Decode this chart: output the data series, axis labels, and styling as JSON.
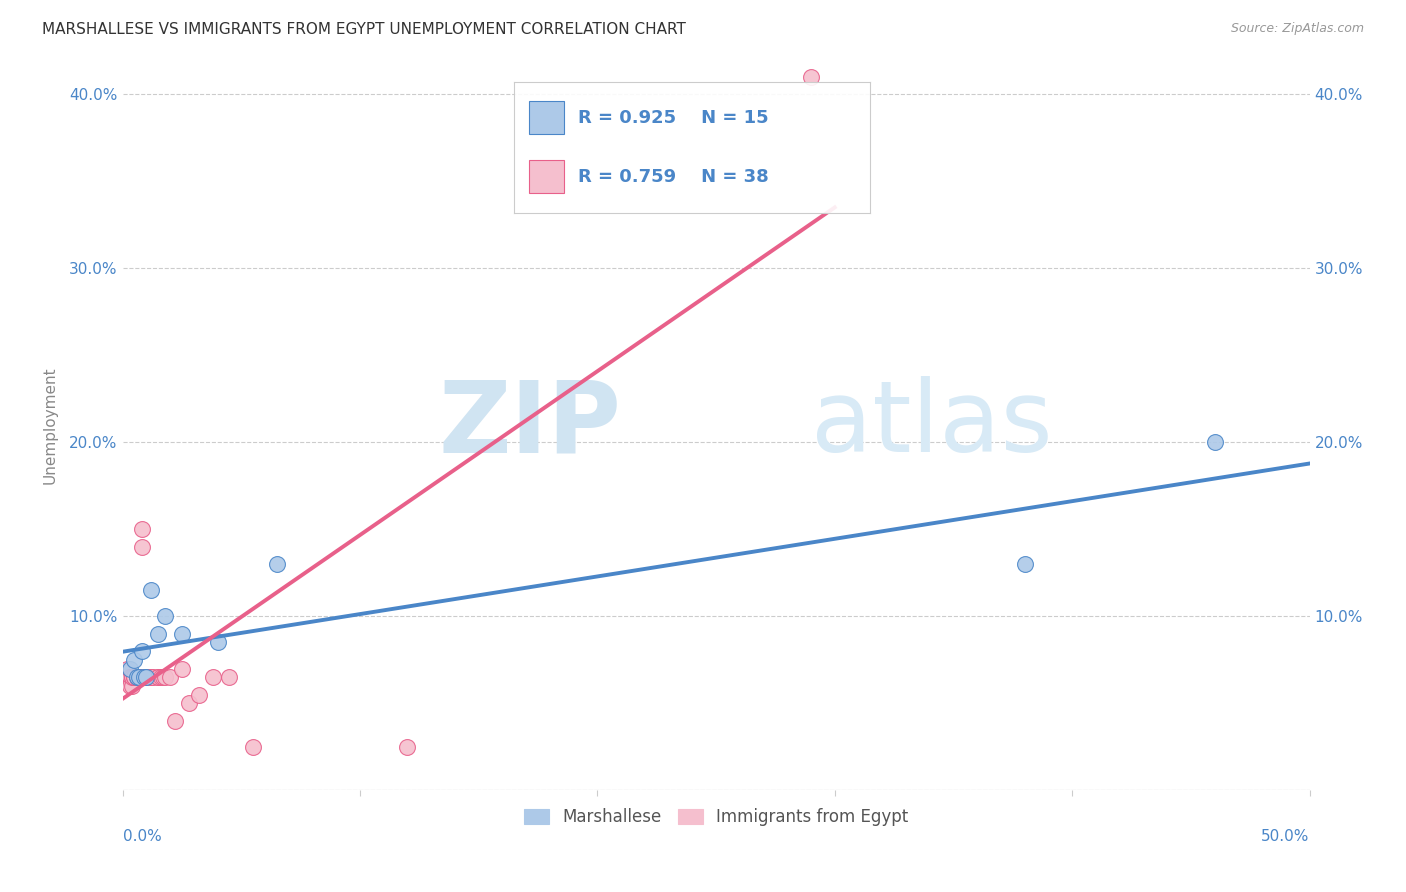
{
  "title": "MARSHALLESE VS IMMIGRANTS FROM EGYPT UNEMPLOYMENT CORRELATION CHART",
  "source": "Source: ZipAtlas.com",
  "ylabel": "Unemployment",
  "xlim": [
    0.0,
    0.5
  ],
  "ylim": [
    0.0,
    0.42
  ],
  "ytick_positions": [
    0.0,
    0.1,
    0.2,
    0.3,
    0.4
  ],
  "ytick_labels": [
    "",
    "10.0%",
    "20.0%",
    "30.0%",
    "40.0%"
  ],
  "xtick_positions": [
    0.0,
    0.1,
    0.2,
    0.3,
    0.4,
    0.5
  ],
  "marshallese_x": [
    0.003,
    0.005,
    0.006,
    0.007,
    0.008,
    0.009,
    0.01,
    0.012,
    0.015,
    0.018,
    0.025,
    0.04,
    0.065,
    0.38,
    0.46
  ],
  "marshallese_y": [
    0.07,
    0.075,
    0.065,
    0.065,
    0.08,
    0.065,
    0.065,
    0.115,
    0.09,
    0.1,
    0.09,
    0.085,
    0.13,
    0.13,
    0.2
  ],
  "egypt_x": [
    0.001,
    0.002,
    0.002,
    0.003,
    0.003,
    0.003,
    0.004,
    0.004,
    0.004,
    0.005,
    0.005,
    0.006,
    0.006,
    0.007,
    0.007,
    0.008,
    0.008,
    0.009,
    0.01,
    0.01,
    0.011,
    0.012,
    0.013,
    0.015,
    0.015,
    0.016,
    0.017,
    0.018,
    0.02,
    0.022,
    0.025,
    0.028,
    0.032,
    0.038,
    0.045,
    0.055,
    0.12,
    0.29
  ],
  "egypt_y": [
    0.065,
    0.065,
    0.07,
    0.065,
    0.065,
    0.06,
    0.065,
    0.06,
    0.065,
    0.065,
    0.065,
    0.065,
    0.065,
    0.065,
    0.065,
    0.14,
    0.15,
    0.065,
    0.065,
    0.065,
    0.065,
    0.065,
    0.065,
    0.065,
    0.065,
    0.065,
    0.065,
    0.065,
    0.065,
    0.04,
    0.07,
    0.05,
    0.055,
    0.065,
    0.065,
    0.025,
    0.025,
    0.41
  ],
  "marshallese_color": "#adc9e8",
  "egypt_color": "#f5bfce",
  "marshallese_line_color": "#4a86c8",
  "egypt_line_color": "#e8608a",
  "marshallese_R": 0.925,
  "marshallese_N": 15,
  "egypt_R": 0.759,
  "egypt_N": 38,
  "grid_color": "#cccccc",
  "background_color": "#ffffff",
  "title_fontsize": 11,
  "axis_label_color": "#4a86c8",
  "legend_text_color": "#4a86c8"
}
